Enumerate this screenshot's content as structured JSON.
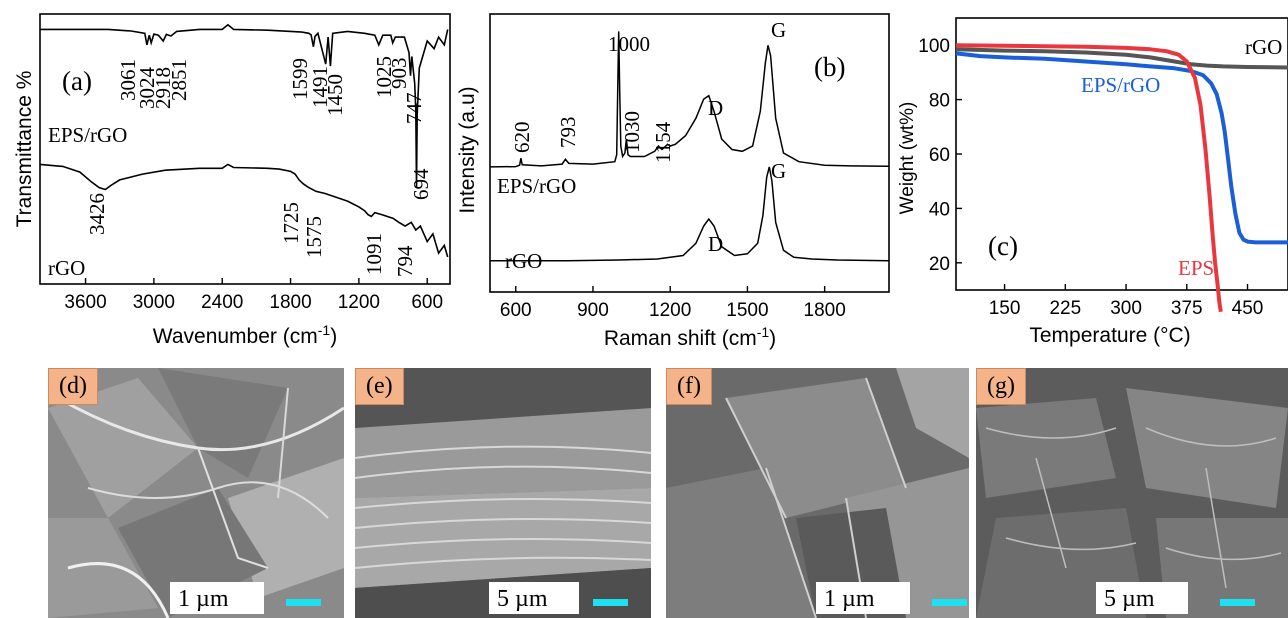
{
  "chart_data": [
    {
      "type": "line",
      "panel_label": "(a)",
      "xlabel": "Wavenumber (cm",
      "xlabel_sup": "-1",
      "xlabel_end": ")",
      "ylabel": "Transmittance %",
      "xlim": [
        4000,
        400
      ],
      "xticks": [
        "3600",
        "3000",
        "2400",
        "1800",
        "1200",
        "600"
      ],
      "x_reversed": true,
      "series": [
        {
          "name": "EPS/rGO",
          "x": [
            4000,
            3700,
            3400,
            3200,
            3080,
            3061,
            3040,
            3024,
            3000,
            2960,
            2918,
            2890,
            2851,
            2800,
            2600,
            2400,
            2350,
            2300,
            2000,
            1800,
            1700,
            1640,
            1620,
            1599,
            1585,
            1560,
            1491,
            1470,
            1450,
            1430,
            1300,
            1150,
            1060,
            1025,
            990,
            920,
            903,
            880,
            800,
            760,
            747,
            735,
            710,
            700,
            694,
            688,
            670,
            600,
            540,
            500,
            450,
            420
          ],
          "y": [
            96,
            96,
            96,
            95.6,
            95,
            92,
            94.5,
            92.5,
            94.8,
            94.5,
            93,
            94.7,
            94.3,
            95.5,
            96,
            96,
            97.2,
            96,
            95.8,
            95.5,
            95.3,
            95,
            94.6,
            91.5,
            94.2,
            95,
            87,
            94,
            86.5,
            95,
            95.5,
            95,
            94.5,
            92,
            94.5,
            94.5,
            92.5,
            94,
            94,
            90,
            84,
            89,
            82,
            75,
            55,
            74,
            86,
            93,
            91,
            94,
            92,
            96
          ]
        },
        {
          "name": "rGO",
          "x": [
            4000,
            3800,
            3650,
            3550,
            3480,
            3426,
            3380,
            3300,
            3100,
            2900,
            2600,
            2400,
            2350,
            2300,
            2000,
            1900,
            1800,
            1760,
            1725,
            1690,
            1640,
            1575,
            1500,
            1400,
            1300,
            1200,
            1150,
            1120,
            1091,
            1060,
            1000,
            900,
            850,
            794,
            740,
            700,
            660,
            600,
            550,
            500,
            450,
            420
          ],
          "y": [
            61,
            60.5,
            59,
            56.5,
            55,
            54.5,
            55.5,
            57,
            58.5,
            59.5,
            60,
            60,
            61,
            60.2,
            60,
            59.8,
            59.2,
            58.5,
            57,
            56,
            55,
            54,
            53.5,
            52.5,
            51.5,
            50,
            49,
            48,
            47.5,
            48.5,
            48,
            47,
            46,
            45,
            46,
            44,
            45,
            41,
            43,
            38,
            40,
            37
          ]
        }
      ],
      "annotations": [
        "3061",
        "3024",
        "2918",
        "2851",
        "1599",
        "1491",
        "1450",
        "1025",
        "903",
        "747",
        "694",
        "3426",
        "1725",
        "1575",
        "1091",
        "794"
      ]
    },
    {
      "type": "line",
      "panel_label": "(b)",
      "xlabel": "Raman shift (cm",
      "xlabel_sup": "-1",
      "xlabel_end": ")",
      "ylabel": "Intensity (a.u)",
      "xlim": [
        500,
        2050
      ],
      "xticks": [
        "600",
        "900",
        "1200",
        "1500",
        "1800"
      ],
      "series": [
        {
          "name": "EPS/rGO",
          "x": [
            500,
            600,
            615,
            620,
            625,
            700,
            780,
            793,
            806,
            900,
            985,
            992,
            996,
            1000,
            1004,
            1008,
            1015,
            1024,
            1030,
            1036,
            1045,
            1100,
            1140,
            1154,
            1168,
            1190,
            1200,
            1220,
            1260,
            1300,
            1330,
            1350,
            1370,
            1400,
            1440,
            1480,
            1520,
            1550,
            1570,
            1580,
            1590,
            1610,
            1640,
            1700,
            1800,
            1900,
            2050
          ],
          "y": [
            6,
            6.1,
            6.5,
            8.5,
            6.6,
            6.3,
            6.8,
            8.2,
            7,
            6.8,
            7.5,
            9.5,
            28,
            45,
            28,
            12,
            9,
            10,
            14,
            9.5,
            9,
            9,
            10.5,
            12,
            11,
            12.5,
            12,
            12.5,
            15,
            20,
            25.5,
            26.5,
            22,
            14,
            11,
            10.5,
            12,
            22,
            36,
            41,
            38,
            20,
            10,
            7.5,
            6.5,
            6.3,
            6.2
          ]
        },
        {
          "name": "rGO",
          "x": [
            500,
            600,
            800,
            1000,
            1150,
            1250,
            1300,
            1330,
            1350,
            1370,
            1400,
            1450,
            1500,
            1540,
            1560,
            1575,
            1585,
            1595,
            1610,
            1640,
            1680,
            1750,
            1850,
            2050
          ],
          "y": [
            -21,
            -21,
            -21,
            -20.8,
            -20.5,
            -19.5,
            -16,
            -11,
            -9,
            -11,
            -17,
            -19.5,
            -19,
            -16,
            -8,
            3,
            6,
            2,
            -10,
            -18,
            -20,
            -20.5,
            -20.8,
            -21
          ]
        }
      ],
      "annotations": [
        "620",
        "793",
        "1000",
        "1030",
        "1154",
        "D",
        "G",
        "D",
        "G"
      ]
    },
    {
      "type": "line",
      "panel_label": "(c)",
      "xlabel": "Temperature (°C)",
      "ylabel": "Weight (wt%)",
      "xlim": [
        90,
        500
      ],
      "ylim": [
        10,
        110
      ],
      "xticks": [
        "150",
        "225",
        "300",
        "375",
        "450"
      ],
      "yticks": [
        "20",
        "40",
        "60",
        "80",
        "100"
      ],
      "series": [
        {
          "name": "rGO",
          "color": "#555555",
          "x": [
            90,
            150,
            200,
            250,
            300,
            330,
            360,
            380,
            400,
            420,
            450,
            500
          ],
          "y": [
            98.5,
            98,
            97.8,
            97.3,
            96.5,
            95.5,
            94,
            93,
            92.5,
            92.2,
            92,
            91.8
          ]
        },
        {
          "name": "EPS/rGO",
          "color": "#1a5fd6",
          "x": [
            90,
            120,
            150,
            200,
            250,
            300,
            330,
            360,
            380,
            395,
            405,
            412,
            418,
            422,
            426,
            430,
            435,
            440,
            445,
            450,
            460,
            480,
            500
          ],
          "y": [
            97,
            96,
            95.5,
            95,
            94,
            93,
            92.2,
            91.5,
            90.5,
            89,
            86,
            82,
            75,
            68,
            58,
            48,
            38,
            31,
            28.5,
            27.8,
            27.5,
            27.5,
            27.5
          ]
        },
        {
          "name": "EPS",
          "color": "#e8383d",
          "x": [
            90,
            150,
            200,
            250,
            300,
            330,
            350,
            365,
            375,
            385,
            392,
            398,
            403,
            407,
            410,
            413,
            415,
            417
          ],
          "y": [
            100,
            99.8,
            99.6,
            99.4,
            99,
            98.5,
            97.8,
            96.5,
            94,
            88,
            78,
            62,
            45,
            30,
            20,
            12,
            6,
            2
          ]
        }
      ]
    }
  ],
  "sem_images": [
    {
      "label": "(d)",
      "scale": "1 µm"
    },
    {
      "label": "(e)",
      "scale": "5 µm"
    },
    {
      "label": "(f)",
      "scale": "1 µm"
    },
    {
      "label": "(g)",
      "scale": "5 µm"
    }
  ]
}
